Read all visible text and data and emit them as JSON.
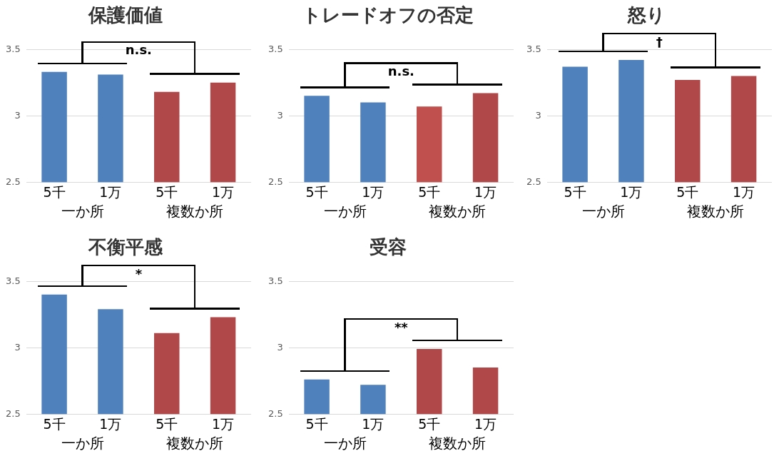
{
  "chart_data": [
    {
      "type": "bar",
      "title": "保護価値",
      "categories": [
        "5千",
        "1万",
        "5千",
        "1万"
      ],
      "values": [
        3.33,
        3.31,
        3.18,
        3.25
      ],
      "colors": [
        "#4f81bd",
        "#4f81bd",
        "#b0484a",
        "#b0484a"
      ],
      "ylim": [
        2.5,
        3.5
      ],
      "yticks": [
        2.5,
        3,
        3.5
      ],
      "grid": "y",
      "annotations": [
        "n.s.",
        "一か所",
        "複数か所"
      ]
    },
    {
      "type": "bar",
      "title": "トレードオフの否定",
      "categories": [
        "5千",
        "1万",
        "5千",
        "1万"
      ],
      "values": [
        3.15,
        3.1,
        3.07,
        3.17
      ],
      "colors": [
        "#4f81bd",
        "#4f81bd",
        "#c0504d",
        "#b0484a"
      ],
      "ylim": [
        2.5,
        3.5
      ],
      "yticks": [
        2.5,
        3,
        3.5
      ],
      "grid": "y",
      "annotations": [
        "n.s.",
        "一か所",
        "複数か所"
      ]
    },
    {
      "type": "bar",
      "title": "怒り",
      "categories": [
        "5千",
        "1万",
        "5千",
        "1万"
      ],
      "values": [
        3.37,
        3.42,
        3.27,
        3.3
      ],
      "colors": [
        "#4f81bd",
        "#4f81bd",
        "#b0484a",
        "#b0484a"
      ],
      "ylim": [
        2.5,
        3.5
      ],
      "yticks": [
        2.5,
        3,
        3.5
      ],
      "grid": "y",
      "annotations": [
        "†",
        "一か所",
        "複数か所"
      ]
    },
    {
      "type": "bar",
      "title": "不衡平感",
      "categories": [
        "5千",
        "1万",
        "5千",
        "1万"
      ],
      "values": [
        3.4,
        3.29,
        3.11,
        3.23
      ],
      "colors": [
        "#4f81bd",
        "#4f81bd",
        "#b0484a",
        "#b0484a"
      ],
      "ylim": [
        2.5,
        3.5
      ],
      "yticks": [
        2.5,
        3,
        3.5
      ],
      "grid": "y",
      "annotations": [
        "*",
        "一か所",
        "複数か所"
      ]
    },
    {
      "type": "bar",
      "title": "受容",
      "categories": [
        "5千",
        "1万",
        "5千",
        "1万"
      ],
      "values": [
        2.76,
        2.72,
        2.99,
        2.85
      ],
      "colors": [
        "#4f81bd",
        "#4f81bd",
        "#b0484a",
        "#b0484a"
      ],
      "ylim": [
        2.5,
        3.5
      ],
      "yticks": [
        2.5,
        3,
        3.5
      ],
      "grid": "y",
      "annotations": [
        "**",
        "一か所",
        "複数か所"
      ]
    }
  ]
}
